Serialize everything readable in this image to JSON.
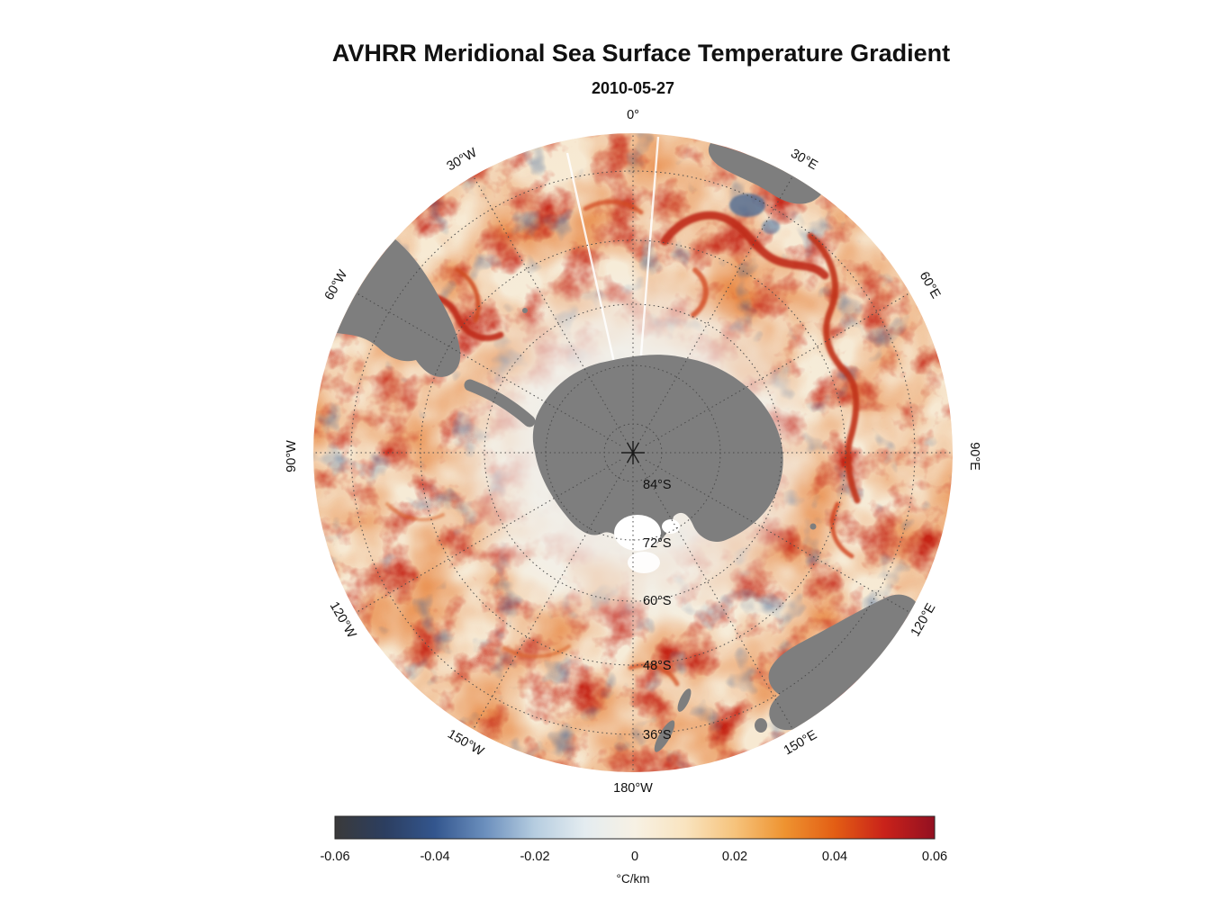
{
  "title": "AVHRR Meridional Sea Surface Temperature Gradient",
  "subtitle": "2010-05-27",
  "map": {
    "land_color": "#7e7e7e",
    "ocean_base_color": "#f6ecd9",
    "polar_low_gradient_color": "#f1efe9",
    "lon_labels": [
      "0°",
      "30°E",
      "60°E",
      "90°E",
      "120°E",
      "150°E",
      "180°W",
      "150°W",
      "120°W",
      "90°W",
      "60°W",
      "30°W"
    ],
    "lat_labels": [
      "84°S",
      "72°S",
      "60°S",
      "48°S",
      "36°S"
    ]
  },
  "colorbar": {
    "ticks": [
      "-0.06",
      "-0.04",
      "-0.02",
      "0",
      "0.02",
      "0.04",
      "0.06"
    ],
    "unit": "°C/km",
    "min": -0.06,
    "max": 0.06,
    "gradient": [
      "#3a3a3a",
      "#2c3e60",
      "#33568e",
      "#6b8fbd",
      "#b6cde0",
      "#e4ecf0",
      "#f7f1e4",
      "#f9e4c0",
      "#f6c37c",
      "#ee9330",
      "#e35e14",
      "#c9221a",
      "#931021"
    ]
  },
  "chart_data": {
    "type": "heatmap",
    "title": "AVHRR Meridional Sea Surface Temperature Gradient",
    "subtitle": "2010-05-27",
    "projection": "south polar stereographic, Antarctica centered, outer edge ~30°S",
    "value_label": "°C/km",
    "value_range": [
      -0.06,
      0.06
    ],
    "colorbar_ticks": [
      -0.06,
      -0.04,
      -0.02,
      0,
      0.02,
      0.04,
      0.06
    ],
    "latitude_rings_deg_S": [
      84,
      72,
      60,
      48,
      36
    ],
    "longitude_spoke_labels": [
      "0°",
      "30°E",
      "60°E",
      "90°E",
      "120°E",
      "150°E",
      "180°W",
      "150°W",
      "120°W",
      "90°W",
      "60°W",
      "30°W"
    ],
    "colormap": [
      "#3a3a3a",
      "#2c3e60",
      "#33568e",
      "#6b8fbd",
      "#b6cde0",
      "#e4ecf0",
      "#f7f1e4",
      "#f9e4c0",
      "#f6c37c",
      "#ee9330",
      "#e35e14",
      "#c9221a",
      "#931021"
    ],
    "notes": "Continuous satellite-derived field: mottled weak positive (orange) gradients over the Southern Ocean, strong positive (dark red) filaments along the Antarctic Circumpolar Current and Agulhas Return Current (30°E–90°E), sparse negative (blue) patches near the Agulhas retroflection and Drake Passage, near-zero pale values surrounding Antarctica, land and ice masked gray."
  }
}
